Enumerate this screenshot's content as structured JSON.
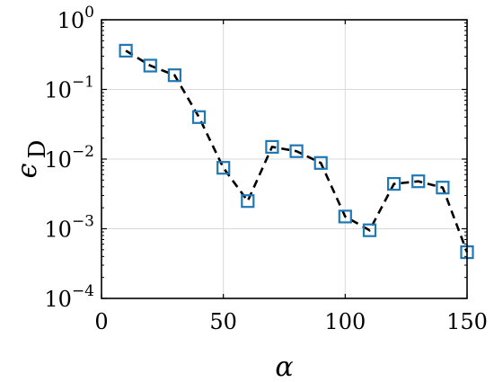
{
  "chart_data": {
    "type": "line",
    "title": "",
    "xlabel": "α",
    "ylabel_main": "ϵ",
    "ylabel_sub": "D",
    "xlim": [
      0,
      150
    ],
    "ylim": [
      0.0001,
      1
    ],
    "yscale": "log",
    "grid": true,
    "x_ticks": [
      0,
      50,
      100,
      150
    ],
    "y_ticks": [
      {
        "value": 1,
        "base": "10",
        "exp": "0"
      },
      {
        "value": 0.1,
        "base": "10",
        "exp": "−1"
      },
      {
        "value": 0.01,
        "base": "10",
        "exp": "−2"
      },
      {
        "value": 0.001,
        "base": "10",
        "exp": "−3"
      },
      {
        "value": 0.0001,
        "base": "10",
        "exp": "−4"
      }
    ],
    "series": [
      {
        "line_style": "dashed",
        "line_color": "#000000",
        "marker": "square",
        "marker_color": "#1f77b4",
        "x": [
          10,
          20,
          30,
          40,
          50,
          60,
          70,
          80,
          90,
          100,
          110,
          120,
          130,
          140,
          150
        ],
        "y": [
          0.36,
          0.22,
          0.16,
          0.04,
          0.0075,
          0.0025,
          0.015,
          0.013,
          0.0088,
          0.0015,
          0.00095,
          0.0044,
          0.0048,
          0.0039,
          0.00046
        ]
      }
    ]
  }
}
